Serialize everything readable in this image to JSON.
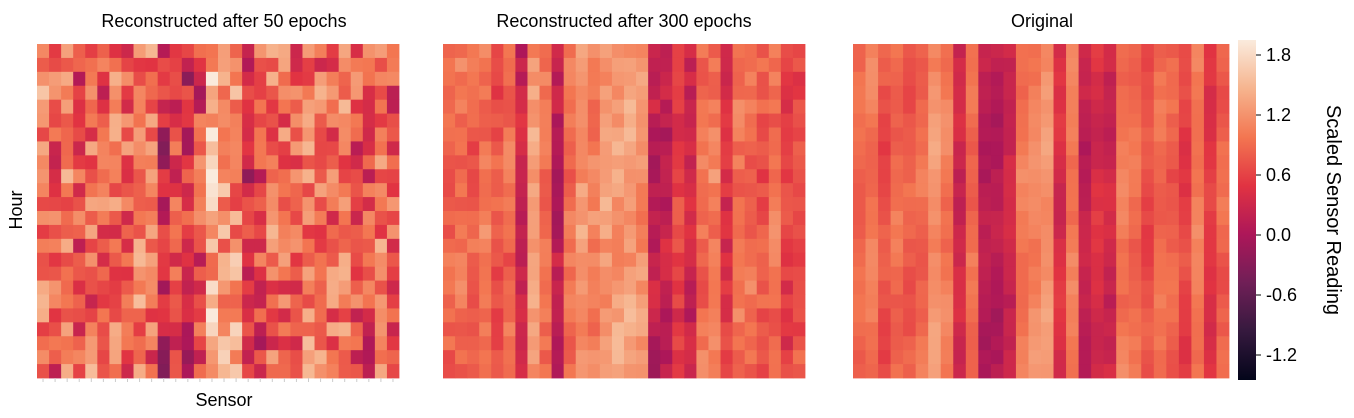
{
  "figure": {
    "xlabel": "Sensor",
    "ylabel": "Hour"
  },
  "colorbar": {
    "label": "Scaled Sensor Reading",
    "vmin": -1.45,
    "vmax": 1.95,
    "ticks": [
      "1.8",
      "1.2",
      "0.6",
      "0.0",
      "-0.6",
      "-1.2"
    ],
    "colormap": [
      "#03051a",
      "#35193e",
      "#701f57",
      "#ad1759",
      "#e13342",
      "#f37651",
      "#f6b48e",
      "#faebdd"
    ]
  },
  "chart_data": [
    {
      "type": "heatmap",
      "title": "Reconstructed after 50 epochs",
      "xlabel": "Sensor",
      "ylabel": "Hour",
      "rows": 24,
      "cols": 30,
      "column_means": [
        0.95,
        0.7,
        1.1,
        0.6,
        0.9,
        0.8,
        1.0,
        0.7,
        1.0,
        0.9,
        0.2,
        0.7,
        0.3,
        0.6,
        1.5,
        1.3,
        1.2,
        0.4,
        0.6,
        0.9,
        1.0,
        0.8,
        1.0,
        0.9,
        0.8,
        0.9,
        0.7,
        0.6,
        0.9,
        0.8
      ],
      "noise": 0.55
    },
    {
      "type": "heatmap",
      "title": "Reconstructed after 300 epochs",
      "rows": 24,
      "cols": 30,
      "column_means": [
        0.85,
        0.95,
        0.85,
        1.0,
        0.75,
        0.9,
        0.3,
        1.25,
        0.9,
        0.1,
        0.95,
        1.2,
        1.05,
        1.3,
        1.25,
        1.3,
        1.15,
        0.15,
        0.2,
        0.6,
        0.3,
        0.95,
        1.05,
        0.45,
        0.9,
        0.9,
        0.75,
        0.95,
        0.55,
        0.7
      ],
      "noise": 0.18
    },
    {
      "type": "heatmap",
      "title": "Original",
      "rows": 24,
      "cols": 30,
      "column_means": [
        0.85,
        1.0,
        0.7,
        0.9,
        0.8,
        0.9,
        1.2,
        1.0,
        0.3,
        0.9,
        0.1,
        0.1,
        0.3,
        1.0,
        1.1,
        1.2,
        0.4,
        1.0,
        0.2,
        0.4,
        0.3,
        1.0,
        0.9,
        0.7,
        0.9,
        0.8,
        0.6,
        1.0,
        0.5,
        0.85
      ],
      "noise": 0.08
    }
  ]
}
